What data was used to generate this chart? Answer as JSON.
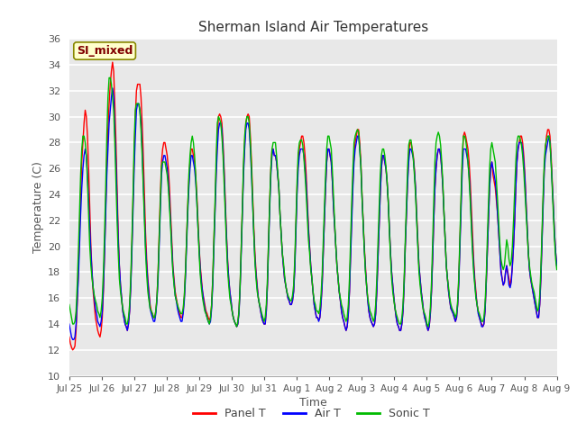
{
  "title": "Sherman Island Air Temperatures",
  "xlabel": "Time",
  "ylabel": "Temperature (C)",
  "ylim": [
    10,
    36
  ],
  "yticks": [
    10,
    12,
    14,
    16,
    18,
    20,
    22,
    24,
    26,
    28,
    30,
    32,
    34,
    36
  ],
  "xtick_labels": [
    "Jul 25",
    "Jul 26",
    "Jul 27",
    "Jul 28",
    "Jul 29",
    "Jul 30",
    "Jul 31",
    "Aug 1",
    "Aug 2",
    "Aug 3",
    "Aug 4",
    "Aug 5",
    "Aug 6",
    "Aug 7",
    "Aug 8",
    "Aug 9"
  ],
  "annotation_text": "SI_mixed",
  "annotation_bg": "#ffffcc",
  "annotation_border": "#888800",
  "annotation_text_color": "#800000",
  "fig_bg": "#ffffff",
  "plot_bg": "#e8e8e8",
  "panel_t_color": "#ff0000",
  "air_t_color": "#0000ff",
  "sonic_t_color": "#00bb00",
  "line_width": 1.0,
  "panel_t": [
    13.0,
    12.5,
    12.2,
    12.0,
    12.1,
    12.3,
    13.5,
    15.5,
    18.0,
    21.0,
    24.0,
    26.5,
    28.0,
    29.5,
    30.5,
    30.0,
    28.5,
    26.0,
    23.0,
    20.0,
    18.0,
    16.5,
    15.5,
    14.5,
    14.0,
    13.5,
    13.2,
    13.0,
    13.5,
    14.5,
    16.5,
    19.5,
    23.0,
    26.5,
    29.0,
    31.0,
    32.5,
    33.5,
    34.2,
    33.5,
    31.0,
    28.0,
    24.5,
    21.0,
    18.5,
    17.0,
    16.0,
    15.0,
    14.5,
    14.0,
    13.8,
    13.5,
    14.0,
    15.0,
    17.0,
    20.0,
    23.5,
    27.0,
    30.0,
    32.0,
    32.5,
    32.5,
    32.5,
    31.5,
    29.5,
    27.0,
    24.0,
    21.0,
    19.0,
    17.5,
    16.5,
    15.5,
    15.0,
    14.8,
    14.5,
    14.5,
    15.0,
    16.0,
    18.0,
    21.0,
    24.0,
    26.5,
    27.5,
    28.0,
    28.0,
    27.5,
    27.0,
    26.0,
    24.5,
    22.5,
    20.5,
    18.5,
    17.5,
    16.5,
    16.0,
    15.5,
    15.0,
    14.8,
    14.5,
    14.5,
    15.0,
    16.0,
    18.0,
    20.5,
    23.0,
    25.0,
    26.5,
    27.5,
    27.5,
    27.0,
    26.5,
    25.5,
    24.0,
    22.0,
    20.0,
    18.5,
    17.5,
    16.5,
    16.0,
    15.5,
    15.0,
    14.8,
    14.5,
    14.3,
    14.5,
    15.5,
    17.5,
    20.5,
    23.0,
    26.0,
    28.5,
    30.0,
    30.2,
    30.0,
    29.5,
    28.0,
    26.0,
    23.5,
    21.0,
    19.0,
    17.5,
    16.5,
    15.8,
    15.0,
    14.5,
    14.2,
    14.0,
    13.8,
    14.0,
    15.0,
    17.0,
    20.0,
    23.0,
    26.0,
    28.0,
    29.5,
    30.0,
    30.2,
    30.0,
    28.5,
    26.5,
    24.0,
    21.5,
    19.5,
    18.0,
    17.0,
    16.0,
    15.5,
    15.0,
    14.5,
    14.2,
    14.0,
    14.0,
    15.0,
    17.0,
    20.5,
    23.5,
    26.0,
    27.5,
    27.5,
    27.0,
    27.0,
    26.5,
    25.5,
    24.5,
    22.5,
    21.0,
    19.5,
    18.5,
    17.5,
    17.0,
    16.5,
    16.0,
    15.8,
    15.5,
    15.5,
    15.8,
    16.5,
    18.5,
    21.5,
    24.5,
    26.5,
    27.5,
    28.0,
    28.5,
    28.5,
    28.0,
    27.0,
    25.5,
    23.5,
    21.5,
    20.0,
    18.5,
    17.5,
    16.5,
    15.5,
    15.0,
    14.5,
    14.5,
    14.3,
    14.5,
    15.5,
    17.0,
    19.5,
    22.0,
    24.5,
    26.5,
    27.5,
    27.5,
    27.0,
    26.5,
    25.0,
    23.0,
    21.5,
    20.0,
    18.5,
    17.5,
    16.5,
    15.8,
    15.0,
    14.5,
    14.2,
    13.8,
    13.5,
    13.8,
    14.8,
    16.5,
    19.5,
    22.5,
    25.0,
    27.0,
    28.0,
    28.5,
    29.0,
    29.0,
    28.0,
    26.5,
    24.0,
    22.0,
    20.0,
    18.5,
    17.0,
    16.0,
    15.0,
    14.5,
    14.2,
    14.0,
    13.8,
    14.0,
    14.8,
    16.5,
    19.0,
    21.5,
    24.0,
    26.0,
    27.0,
    27.0,
    26.5,
    26.0,
    25.0,
    23.5,
    21.5,
    19.5,
    18.0,
    17.0,
    16.0,
    15.2,
    14.5,
    14.0,
    13.8,
    13.5,
    13.5,
    14.0,
    15.0,
    17.0,
    20.0,
    22.5,
    25.0,
    27.0,
    28.0,
    28.0,
    27.5,
    27.0,
    26.0,
    24.5,
    22.5,
    20.5,
    18.5,
    17.5,
    16.5,
    15.8,
    15.0,
    14.5,
    14.2,
    13.8,
    13.5,
    13.8,
    14.8,
    16.5,
    19.0,
    22.0,
    24.5,
    26.0,
    27.0,
    27.5,
    27.5,
    27.0,
    26.0,
    24.5,
    22.5,
    20.5,
    18.5,
    17.5,
    16.5,
    15.8,
    15.2,
    15.0,
    14.8,
    14.5,
    14.2,
    14.5,
    15.5,
    17.5,
    20.5,
    23.5,
    26.5,
    28.5,
    28.8,
    28.5,
    28.0,
    27.5,
    26.5,
    25.0,
    23.0,
    21.0,
    19.0,
    17.5,
    16.5,
    15.5,
    15.0,
    14.5,
    14.2,
    14.0,
    13.8,
    14.0,
    15.0,
    17.0,
    19.5,
    22.0,
    24.5,
    26.0,
    26.5,
    25.5,
    25.0,
    24.5,
    23.5,
    22.5,
    21.0,
    19.5,
    18.2,
    17.5,
    17.0,
    17.2,
    18.0,
    18.5,
    18.0,
    17.5,
    17.0,
    17.5,
    18.5,
    20.0,
    22.0,
    24.5,
    26.5,
    27.5,
    28.0,
    28.5,
    28.5,
    28.0,
    27.0,
    25.5,
    23.5,
    21.5,
    19.5,
    18.2,
    17.5,
    17.0,
    16.5,
    16.0,
    15.5,
    15.0,
    14.5,
    14.5,
    15.5,
    17.5,
    20.5,
    23.5,
    26.0,
    27.5,
    28.5,
    29.0,
    29.0,
    28.5,
    27.0,
    25.0,
    23.0,
    21.0,
    19.5,
    18.5
  ],
  "air_t": [
    14.0,
    13.5,
    13.0,
    12.8,
    12.8,
    13.0,
    14.0,
    15.8,
    17.5,
    20.0,
    22.5,
    24.5,
    26.0,
    27.0,
    27.5,
    27.0,
    25.5,
    23.5,
    21.5,
    19.5,
    18.0,
    16.8,
    16.0,
    15.2,
    14.8,
    14.2,
    14.0,
    13.8,
    14.2,
    15.0,
    16.8,
    19.5,
    22.5,
    25.5,
    27.5,
    29.5,
    30.5,
    31.5,
    32.2,
    31.5,
    29.0,
    26.5,
    23.5,
    20.5,
    18.5,
    17.0,
    16.0,
    15.0,
    14.5,
    14.0,
    13.8,
    13.5,
    14.0,
    15.0,
    16.8,
    19.5,
    22.8,
    26.0,
    28.5,
    30.5,
    31.0,
    31.0,
    30.5,
    29.5,
    27.5,
    25.0,
    22.5,
    20.0,
    18.5,
    17.2,
    16.2,
    15.2,
    14.8,
    14.5,
    14.2,
    14.2,
    14.8,
    15.8,
    17.5,
    20.2,
    23.0,
    25.5,
    26.5,
    27.0,
    27.0,
    26.5,
    26.0,
    25.0,
    23.5,
    21.8,
    20.0,
    18.2,
    17.2,
    16.2,
    15.8,
    15.2,
    14.8,
    14.5,
    14.2,
    14.2,
    14.8,
    15.8,
    17.5,
    20.0,
    22.5,
    24.5,
    26.0,
    27.0,
    27.0,
    26.5,
    26.0,
    25.0,
    23.5,
    21.5,
    19.8,
    18.2,
    17.2,
    16.5,
    15.8,
    15.2,
    14.8,
    14.5,
    14.2,
    14.0,
    14.2,
    15.2,
    17.0,
    19.8,
    22.5,
    25.5,
    27.5,
    29.0,
    29.5,
    29.5,
    29.0,
    27.5,
    25.5,
    23.0,
    20.8,
    18.8,
    17.5,
    16.5,
    15.8,
    15.0,
    14.5,
    14.2,
    14.0,
    13.8,
    14.0,
    14.8,
    16.8,
    19.5,
    22.5,
    25.5,
    27.5,
    29.0,
    29.5,
    29.5,
    29.0,
    27.5,
    25.5,
    23.2,
    21.0,
    19.0,
    17.8,
    16.8,
    16.0,
    15.5,
    15.0,
    14.5,
    14.2,
    14.0,
    14.0,
    15.0,
    17.0,
    20.0,
    23.0,
    25.5,
    27.0,
    27.5,
    27.0,
    27.0,
    26.5,
    25.5,
    24.5,
    22.5,
    21.0,
    19.5,
    18.5,
    17.5,
    17.0,
    16.5,
    16.0,
    15.8,
    15.5,
    15.5,
    15.8,
    16.5,
    18.2,
    21.0,
    24.0,
    26.0,
    27.0,
    27.5,
    27.5,
    27.5,
    27.0,
    26.0,
    24.8,
    23.0,
    21.2,
    19.8,
    18.5,
    17.5,
    16.5,
    15.5,
    15.0,
    14.5,
    14.5,
    14.2,
    14.5,
    15.5,
    17.0,
    19.5,
    22.0,
    24.5,
    26.5,
    27.5,
    27.5,
    27.0,
    26.5,
    25.0,
    23.0,
    21.5,
    20.0,
    18.5,
    17.5,
    16.5,
    15.8,
    15.0,
    14.5,
    14.2,
    13.8,
    13.5,
    13.8,
    14.8,
    16.5,
    19.2,
    22.0,
    24.5,
    26.5,
    27.5,
    28.0,
    28.5,
    28.5,
    27.5,
    26.2,
    23.8,
    21.8,
    19.8,
    18.2,
    17.0,
    15.8,
    15.0,
    14.5,
    14.2,
    14.0,
    13.8,
    14.0,
    14.8,
    16.5,
    19.0,
    21.5,
    24.0,
    26.0,
    27.0,
    27.0,
    26.5,
    26.0,
    25.0,
    23.5,
    21.5,
    19.5,
    18.0,
    17.0,
    16.0,
    15.2,
    14.5,
    14.0,
    13.8,
    13.5,
    13.5,
    14.0,
    15.0,
    17.0,
    20.0,
    22.5,
    24.8,
    26.5,
    27.5,
    27.5,
    27.2,
    26.8,
    25.8,
    24.5,
    22.2,
    20.2,
    18.5,
    17.5,
    16.5,
    15.8,
    15.0,
    14.5,
    14.2,
    13.8,
    13.5,
    13.8,
    14.8,
    16.5,
    19.0,
    22.0,
    24.5,
    26.0,
    27.0,
    27.5,
    27.5,
    27.0,
    26.0,
    24.5,
    22.5,
    20.5,
    18.5,
    17.5,
    16.5,
    15.8,
    15.2,
    15.0,
    14.8,
    14.5,
    14.2,
    14.5,
    15.5,
    17.2,
    20.0,
    22.8,
    25.8,
    27.5,
    27.5,
    27.5,
    27.0,
    26.5,
    25.5,
    24.0,
    22.0,
    20.0,
    18.5,
    17.2,
    16.2,
    15.5,
    14.8,
    14.5,
    14.2,
    13.8,
    13.8,
    14.0,
    15.0,
    17.0,
    19.5,
    22.0,
    24.5,
    26.0,
    26.5,
    26.0,
    25.5,
    25.0,
    24.0,
    22.5,
    21.0,
    19.5,
    18.0,
    17.5,
    17.0,
    17.2,
    18.0,
    18.5,
    17.8,
    17.0,
    16.8,
    17.2,
    18.5,
    20.0,
    22.0,
    24.5,
    26.5,
    27.5,
    28.0,
    28.0,
    28.0,
    27.5,
    26.5,
    25.2,
    23.2,
    21.5,
    19.5,
    18.2,
    17.5,
    17.0,
    16.5,
    16.0,
    15.5,
    15.0,
    14.5,
    14.5,
    15.5,
    17.5,
    20.2,
    23.0,
    25.8,
    27.0,
    27.5,
    28.0,
    28.5,
    28.0,
    26.5,
    24.8,
    23.0,
    21.0,
    19.5,
    18.5
  ],
  "sonic_t": [
    15.5,
    15.0,
    14.5,
    14.0,
    14.0,
    14.2,
    15.0,
    17.0,
    19.5,
    22.5,
    25.5,
    27.5,
    28.5,
    28.5,
    28.0,
    27.0,
    25.0,
    22.5,
    20.0,
    18.5,
    17.5,
    16.8,
    16.2,
    15.8,
    15.5,
    15.0,
    14.8,
    14.5,
    15.0,
    16.0,
    18.0,
    21.0,
    24.5,
    28.5,
    31.5,
    33.0,
    33.0,
    32.5,
    31.5,
    30.5,
    28.0,
    25.0,
    22.0,
    19.5,
    17.5,
    16.5,
    15.8,
    15.2,
    14.8,
    14.5,
    14.0,
    14.0,
    14.5,
    15.5,
    17.5,
    20.5,
    24.0,
    28.0,
    30.5,
    31.0,
    31.0,
    31.0,
    30.5,
    29.0,
    27.0,
    24.5,
    22.0,
    19.5,
    17.8,
    16.5,
    15.8,
    15.2,
    15.0,
    14.8,
    14.5,
    14.5,
    15.0,
    16.0,
    18.0,
    20.8,
    23.5,
    26.2,
    26.5,
    26.5,
    26.5,
    26.0,
    25.5,
    24.5,
    23.0,
    21.5,
    19.5,
    18.0,
    17.0,
    16.2,
    15.8,
    15.5,
    15.2,
    15.0,
    14.8,
    14.8,
    15.2,
    16.2,
    18.0,
    20.5,
    23.0,
    25.5,
    27.0,
    28.0,
    28.5,
    28.0,
    27.0,
    25.5,
    23.5,
    21.5,
    19.5,
    17.8,
    16.8,
    16.0,
    15.5,
    15.0,
    14.8,
    14.5,
    14.2,
    14.0,
    14.5,
    15.5,
    17.5,
    20.5,
    23.5,
    27.0,
    29.5,
    30.0,
    29.8,
    29.5,
    28.5,
    27.0,
    24.8,
    22.5,
    20.2,
    18.2,
    17.0,
    16.0,
    15.5,
    15.0,
    14.5,
    14.2,
    14.0,
    13.8,
    14.2,
    15.0,
    17.0,
    20.0,
    23.0,
    26.5,
    28.5,
    29.5,
    30.0,
    30.0,
    29.5,
    28.0,
    26.0,
    23.5,
    21.0,
    18.8,
    17.5,
    16.5,
    16.0,
    15.5,
    15.2,
    14.8,
    14.5,
    14.2,
    14.5,
    15.5,
    17.5,
    20.5,
    23.5,
    26.0,
    27.5,
    28.0,
    28.0,
    28.0,
    27.0,
    25.8,
    24.5,
    22.5,
    21.0,
    19.5,
    18.8,
    17.8,
    17.0,
    16.5,
    16.2,
    16.0,
    15.8,
    15.8,
    16.2,
    17.0,
    19.0,
    22.0,
    25.0,
    27.2,
    28.0,
    28.2,
    28.2,
    27.8,
    26.8,
    25.5,
    24.0,
    22.2,
    20.5,
    19.5,
    18.2,
    17.5,
    16.5,
    15.8,
    15.5,
    15.0,
    15.0,
    14.8,
    15.2,
    16.2,
    17.8,
    20.5,
    23.0,
    25.5,
    27.5,
    28.5,
    28.5,
    28.0,
    27.5,
    25.8,
    23.8,
    21.8,
    20.0,
    18.5,
    17.5,
    16.5,
    16.0,
    15.5,
    15.2,
    14.8,
    14.5,
    14.2,
    14.5,
    15.5,
    17.5,
    20.5,
    23.5,
    26.0,
    28.0,
    28.5,
    28.8,
    29.0,
    28.8,
    27.5,
    26.2,
    23.8,
    21.8,
    19.8,
    18.0,
    17.0,
    16.0,
    15.5,
    15.0,
    14.8,
    14.5,
    14.2,
    14.5,
    15.5,
    17.5,
    20.2,
    22.8,
    25.5,
    27.0,
    27.5,
    27.5,
    27.0,
    26.2,
    25.0,
    23.5,
    21.2,
    19.2,
    17.5,
    16.5,
    15.8,
    15.2,
    14.8,
    14.5,
    14.2,
    14.0,
    14.0,
    14.5,
    15.5,
    17.5,
    20.5,
    23.2,
    26.0,
    27.8,
    28.2,
    28.2,
    27.5,
    26.8,
    25.5,
    24.0,
    22.0,
    20.0,
    18.0,
    17.0,
    16.2,
    15.5,
    15.0,
    14.8,
    14.5,
    14.0,
    13.8,
    14.2,
    15.2,
    17.2,
    20.2,
    23.5,
    26.5,
    28.0,
    28.5,
    28.8,
    28.5,
    27.8,
    26.5,
    24.8,
    22.5,
    20.5,
    18.5,
    17.5,
    16.8,
    16.0,
    15.5,
    15.2,
    15.0,
    14.8,
    14.5,
    14.8,
    15.8,
    17.8,
    21.0,
    24.0,
    27.0,
    28.5,
    28.5,
    28.2,
    27.5,
    26.5,
    25.2,
    23.5,
    21.5,
    19.5,
    18.0,
    17.0,
    16.0,
    15.5,
    15.0,
    14.8,
    14.5,
    14.2,
    14.2,
    14.5,
    15.5,
    17.5,
    20.5,
    23.2,
    26.0,
    27.5,
    28.0,
    27.5,
    27.0,
    26.5,
    25.0,
    23.5,
    21.8,
    20.2,
    19.0,
    18.5,
    18.2,
    18.5,
    19.5,
    20.5,
    20.0,
    19.0,
    18.5,
    18.8,
    20.0,
    22.0,
    24.2,
    26.5,
    28.0,
    28.5,
    28.5,
    28.2,
    27.8,
    27.0,
    25.8,
    24.2,
    22.5,
    21.0,
    19.5,
    18.5,
    17.8,
    17.2,
    16.8,
    16.5,
    16.0,
    15.5,
    15.0,
    15.2,
    16.2,
    18.2,
    21.2,
    24.0,
    26.5,
    27.8,
    28.2,
    28.5,
    28.5,
    28.0,
    26.5,
    24.5,
    22.5,
    20.5,
    19.0,
    18.2
  ]
}
